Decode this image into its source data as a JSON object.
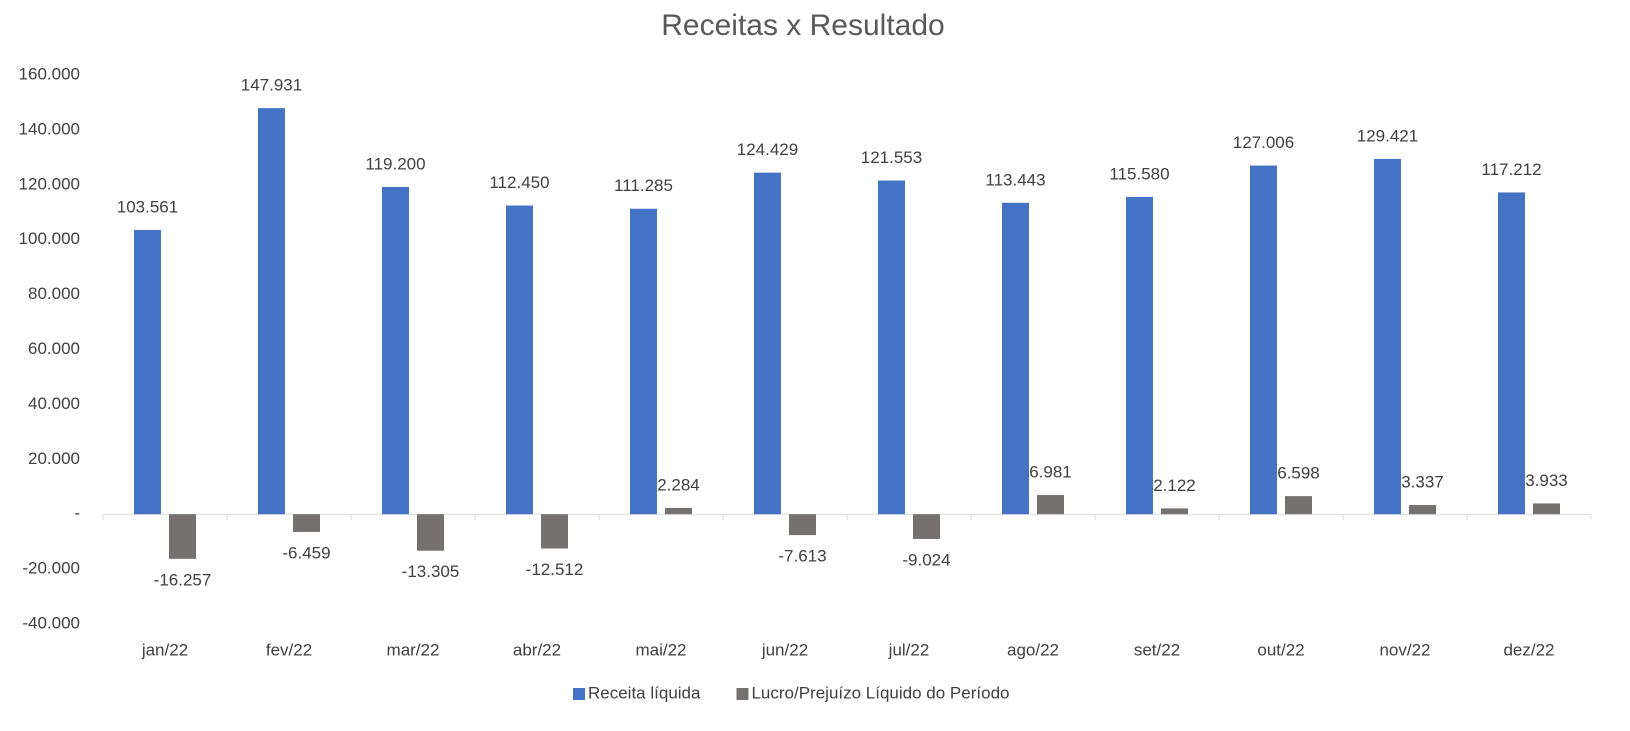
{
  "chart_data": {
    "type": "bar",
    "title": "Receitas x Resultado",
    "categories": [
      "jan/22",
      "fev/22",
      "mar/22",
      "abr/22",
      "mai/22",
      "jun/22",
      "jul/22",
      "ago/22",
      "set/22",
      "out/22",
      "nov/22",
      "dez/22"
    ],
    "series": [
      {
        "name": "Receita líquida",
        "color": "#4472c4",
        "values": [
          103561,
          147931,
          119200,
          112450,
          111285,
          124429,
          121553,
          113443,
          115580,
          127006,
          129421,
          117212
        ],
        "value_labels": [
          "103.561",
          "147.931",
          "119.200",
          "112.450",
          "111.285",
          "124.429",
          "121.553",
          "113.443",
          "115.580",
          "127.006",
          "129.421",
          "117.212"
        ]
      },
      {
        "name": "Lucro/Prejuízo Líquido do Período",
        "color": "#767171",
        "values": [
          -16257,
          -6459,
          -13305,
          -12512,
          2284,
          -7613,
          -9024,
          6981,
          2122,
          6598,
          3337,
          3933
        ],
        "value_labels": [
          "-16.257",
          "-6.459",
          "-13.305",
          "-12.512",
          "2.284",
          "-7.613",
          "-9.024",
          "6.981",
          "2.122",
          "6.598",
          "3.337",
          "3.933"
        ]
      }
    ],
    "ylim": [
      -40000,
      160000
    ],
    "yticks": [
      {
        "value": -40000,
        "label": "-40.000"
      },
      {
        "value": -20000,
        "label": "-20.000"
      },
      {
        "value": 0,
        "label": "-"
      },
      {
        "value": 20000,
        "label": "20.000"
      },
      {
        "value": 40000,
        "label": "40.000"
      },
      {
        "value": 60000,
        "label": "60.000"
      },
      {
        "value": 80000,
        "label": "80.000"
      },
      {
        "value": 100000,
        "label": "100.000"
      },
      {
        "value": 120000,
        "label": "120.000"
      },
      {
        "value": 140000,
        "label": "140.000"
      },
      {
        "value": 160000,
        "label": "160.000"
      }
    ],
    "grid": false
  }
}
